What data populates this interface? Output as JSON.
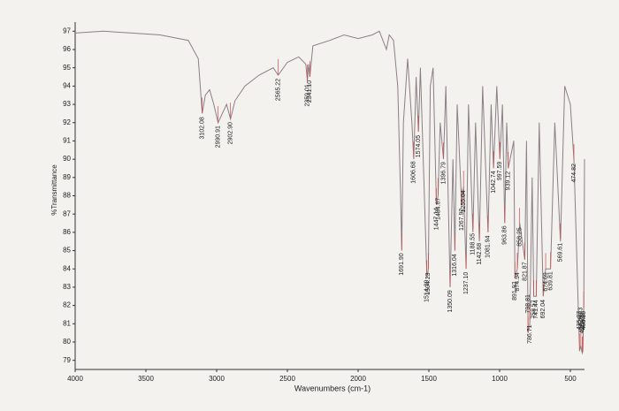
{
  "chart_data": {
    "type": "line",
    "x_label": "Wavenumbers (cm-1)",
    "y_label": "%Transmittance",
    "color": "#8c7f86",
    "peak_color": "#d24a4a",
    "xlim": [
      4000,
      400
    ],
    "xticks": [
      4000,
      3500,
      3000,
      2500,
      2000,
      1500,
      1000,
      500
    ],
    "ylim": [
      78.5,
      97.5
    ],
    "yticks": [
      79,
      80,
      81,
      82,
      83,
      84,
      85,
      86,
      87,
      88,
      89,
      90,
      91,
      92,
      93,
      94,
      95,
      96,
      97
    ],
    "x": [
      4000,
      3800,
      3600,
      3400,
      3200,
      3130,
      3102,
      3080,
      3050,
      3020,
      2990,
      2960,
      2930,
      2902,
      2870,
      2800,
      2700,
      2600,
      2565,
      2500,
      2420,
      2370,
      2359,
      2350,
      2341,
      2320,
      2200,
      2100,
      2000,
      1900,
      1850,
      1800,
      1780,
      1750,
      1720,
      1700,
      1692,
      1680,
      1650,
      1620,
      1607,
      1590,
      1574,
      1560,
      1514,
      1504,
      1490,
      1470,
      1447,
      1435,
      1420,
      1397,
      1380,
      1350,
      1330,
      1316,
      1300,
      1268,
      1255,
      1237,
      1220,
      1189,
      1170,
      1143,
      1120,
      1082,
      1060,
      1043,
      1020,
      998,
      980,
      964,
      950,
      939,
      900,
      892,
      875,
      858,
      822,
      810,
      799,
      787,
      770,
      759,
      741,
      720,
      692,
      675,
      640,
      610,
      570,
      540,
      500,
      475,
      435,
      426,
      416,
      412,
      405,
      400
    ],
    "values": [
      96.9,
      97.0,
      96.9,
      96.8,
      96.5,
      95.5,
      92.5,
      93.5,
      93.8,
      93.0,
      92.0,
      92.5,
      93.0,
      92.2,
      93.2,
      94.0,
      94.6,
      95.0,
      94.6,
      95.3,
      95.6,
      95.2,
      94.3,
      95.2,
      94.5,
      96.2,
      96.5,
      96.8,
      96.6,
      96.8,
      97.0,
      96.0,
      96.8,
      96.5,
      94.0,
      88.0,
      85.0,
      92.0,
      95.5,
      92.0,
      90.0,
      94.5,
      91.5,
      95.0,
      83.5,
      84.0,
      94.0,
      95.0,
      87.5,
      88.0,
      92.0,
      90.0,
      94.0,
      83.0,
      90.0,
      85.0,
      93.0,
      87.5,
      88.5,
      84.0,
      93.0,
      86.0,
      92.0,
      85.5,
      94.0,
      86.0,
      93.0,
      89.5,
      94.0,
      90.0,
      93.0,
      86.5,
      92.0,
      89.5,
      91.0,
      83.5,
      84.0,
      86.5,
      84.5,
      91.0,
      80.5,
      81.0,
      89.0,
      82.5,
      82.5,
      92.0,
      82.5,
      84.0,
      84.0,
      92.0,
      85.5,
      94.0,
      93.0,
      90.0,
      79.5,
      79.8,
      79.4,
      79.5,
      82.0,
      90.0
    ],
    "peaks": [
      {
        "value": 3102.08,
        "label": "3102.08"
      },
      {
        "value": 2990.91,
        "label": "2990.91"
      },
      {
        "value": 2902.9,
        "label": "2902.90"
      },
      {
        "value": 2565.22,
        "label": "2565.22"
      },
      {
        "value": 2359.01,
        "label": "2359.01"
      },
      {
        "value": 2341.1,
        "label": "2341.10"
      },
      {
        "value": 1691.9,
        "label": "1691.90"
      },
      {
        "value": 1606.68,
        "label": "1606.68"
      },
      {
        "value": 1574.05,
        "label": "1574.05"
      },
      {
        "value": 1514.39,
        "label": "1514.39"
      },
      {
        "value": 1504.23,
        "label": "1504.23"
      },
      {
        "value": 1447.14,
        "label": "1447.14"
      },
      {
        "value": 1434.67,
        "label": "1434.67"
      },
      {
        "value": 1396.79,
        "label": "1396.79"
      },
      {
        "value": 1350.09,
        "label": "1350.09"
      },
      {
        "value": 1316.04,
        "label": "1316.04"
      },
      {
        "value": 1267.92,
        "label": "1267.92"
      },
      {
        "value": 1255.04,
        "label": "1255.04"
      },
      {
        "value": 1237.1,
        "label": "1237.10"
      },
      {
        "value": 1188.55,
        "label": "1188.55"
      },
      {
        "value": 1142.68,
        "label": "1142.68"
      },
      {
        "value": 1081.94,
        "label": "1081.94"
      },
      {
        "value": 1042.74,
        "label": "1042.74"
      },
      {
        "value": 997.59,
        "label": "997.59"
      },
      {
        "value": 963.86,
        "label": "963.86"
      },
      {
        "value": 939.12,
        "label": "939.12"
      },
      {
        "value": 891.92,
        "label": "891.92"
      },
      {
        "value": 874.94,
        "label": "874.94"
      },
      {
        "value": 858.25,
        "label": "858.25"
      },
      {
        "value": 821.87,
        "label": "821.87"
      },
      {
        "value": 798.81,
        "label": "798.81"
      },
      {
        "value": 786.71,
        "label": "786.71"
      },
      {
        "value": 758.57,
        "label": "758.57"
      },
      {
        "value": 741.44,
        "label": "741.44"
      },
      {
        "value": 692.04,
        "label": "692.04"
      },
      {
        "value": 674.69,
        "label": "674.69"
      },
      {
        "value": 639.81,
        "label": "639.81"
      },
      {
        "value": 569.61,
        "label": "569.61"
      },
      {
        "value": 474.82,
        "label": "474.82"
      },
      {
        "value": 435.37,
        "label": "435.37"
      },
      {
        "value": 425.93,
        "label": "425.93"
      },
      {
        "value": 416.28,
        "label": "416.28"
      },
      {
        "value": 412.08,
        "label": "412.08"
      },
      {
        "value": 405.29,
        "label": "405.29"
      }
    ]
  }
}
